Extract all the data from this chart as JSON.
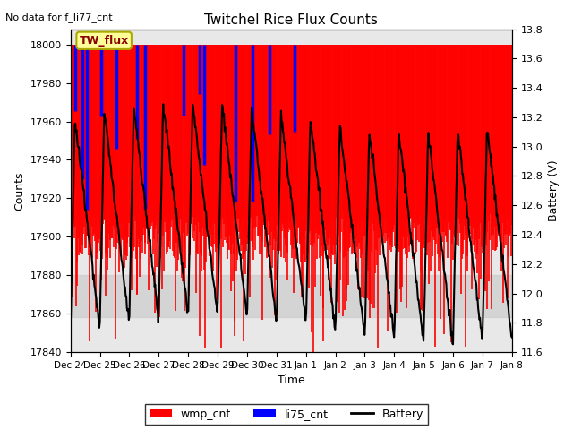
{
  "title": "Twitchel Rice Flux Counts",
  "no_data_label": "No data for f_li77_cnt",
  "tw_flux_label": "TW_flux",
  "xlabel": "Time",
  "ylabel_left": "Counts",
  "ylabel_right": "Battery (V)",
  "ylim_left": [
    17840,
    18008
  ],
  "ylim_right": [
    11.6,
    13.8
  ],
  "yticks_left": [
    17840,
    17860,
    17880,
    17900,
    17920,
    17940,
    17960,
    17980,
    18000
  ],
  "yticks_right": [
    11.6,
    11.8,
    12.0,
    12.2,
    12.4,
    12.6,
    12.8,
    13.0,
    13.2,
    13.4,
    13.6,
    13.8
  ],
  "xtick_labels": [
    "Dec 24",
    "Dec 25",
    "Dec 26",
    "Dec 27",
    "Dec 28",
    "Dec 29",
    "Dec 30",
    "Dec 31",
    "Jan 1",
    "Jan 2",
    "Jan 3",
    "Jan 4",
    "Jan 5",
    "Jan 6",
    "Jan 7",
    "Jan 8"
  ],
  "wmp_color": "#FF0000",
  "li75_color": "#0000FF",
  "battery_color": "#000000",
  "background_color": "#E8E8E8",
  "tw_flux_box_color": "#FFFF99",
  "tw_flux_box_edge": "#AAAA00",
  "legend_entries": [
    "wmp_cnt",
    "li75_cnt",
    "Battery"
  ],
  "figsize": [
    6.4,
    4.8
  ],
  "dpi": 100
}
